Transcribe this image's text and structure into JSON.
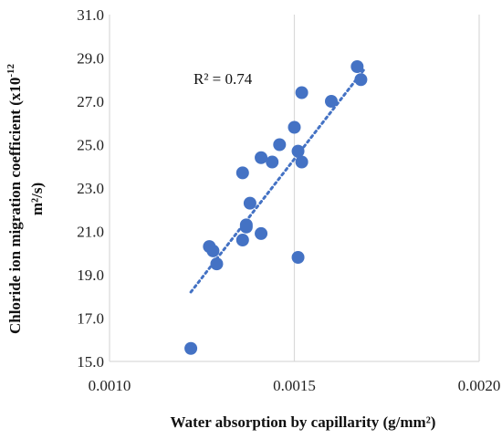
{
  "chart_data": {
    "type": "scatter",
    "xlabel": "Water absorption by capillarity (g/mm²)",
    "ylabel_line1": "Chloride ion migration coefficient (x10",
    "ylabel_exp": "-12",
    "ylabel_line2": "m²/s)",
    "xlim": [
      0.001,
      0.002
    ],
    "ylim": [
      15.0,
      31.0
    ],
    "x_ticks": [
      0.001,
      0.0015,
      0.002
    ],
    "x_tick_labels": [
      "0.0010",
      "0.0015",
      "0.0020"
    ],
    "y_ticks": [
      15,
      17,
      19,
      21,
      23,
      25,
      27,
      29,
      31
    ],
    "y_tick_labels": [
      "15.0",
      "17.0",
      "19.0",
      "21.0",
      "23.0",
      "25.0",
      "27.0",
      "29.0",
      "31.0"
    ],
    "grid": {
      "vertical": true,
      "horizontal": false
    },
    "annotation": "R² = 0.74",
    "marker_color": "#4472C4",
    "trendline_color": "#4472C4",
    "trendline": {
      "type": "linear",
      "x_range": [
        0.00122,
        0.00169
      ],
      "y_range": [
        18.2,
        28.5
      ]
    },
    "points": [
      {
        "x": 0.00122,
        "y": 15.6
      },
      {
        "x": 0.00127,
        "y": 20.3
      },
      {
        "x": 0.00128,
        "y": 20.1
      },
      {
        "x": 0.00129,
        "y": 19.5
      },
      {
        "x": 0.00136,
        "y": 20.6
      },
      {
        "x": 0.00137,
        "y": 21.2
      },
      {
        "x": 0.00137,
        "y": 21.3
      },
      {
        "x": 0.00138,
        "y": 22.3
      },
      {
        "x": 0.00136,
        "y": 23.7
      },
      {
        "x": 0.00141,
        "y": 20.9
      },
      {
        "x": 0.00141,
        "y": 24.4
      },
      {
        "x": 0.00144,
        "y": 24.2
      },
      {
        "x": 0.00146,
        "y": 25.0
      },
      {
        "x": 0.0015,
        "y": 25.8
      },
      {
        "x": 0.00151,
        "y": 24.7
      },
      {
        "x": 0.00152,
        "y": 24.2
      },
      {
        "x": 0.00152,
        "y": 27.4
      },
      {
        "x": 0.00151,
        "y": 19.8
      },
      {
        "x": 0.0016,
        "y": 27.0
      },
      {
        "x": 0.00167,
        "y": 28.6
      },
      {
        "x": 0.00168,
        "y": 28.0
      }
    ]
  }
}
